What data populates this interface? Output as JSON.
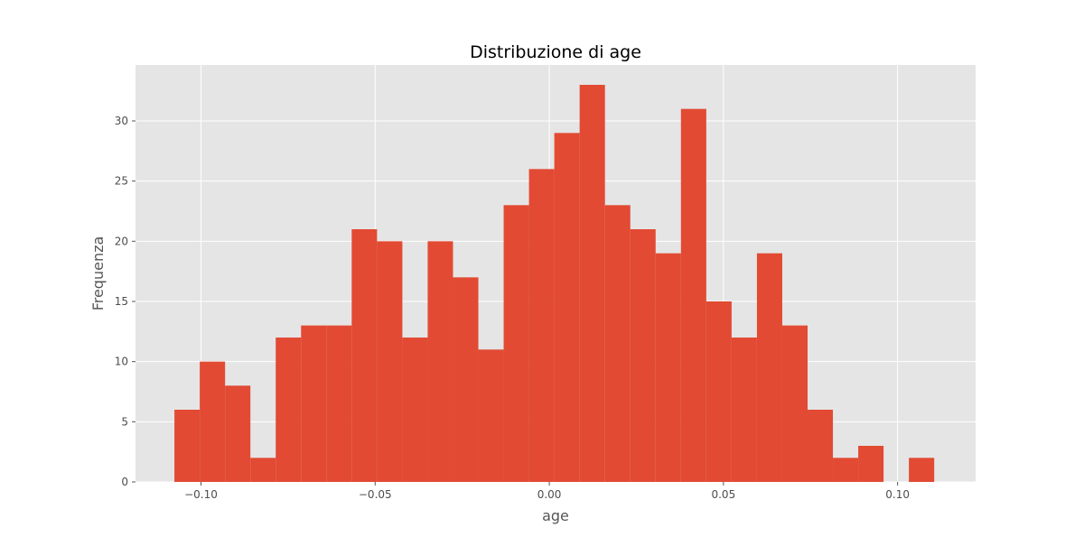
{
  "chart_data": {
    "type": "bar",
    "title": "Distribuzione di age",
    "xlabel": "age",
    "ylabel": "Frequenza",
    "xlim": [
      -0.1188,
      0.1224
    ],
    "ylim": [
      0,
      34.65
    ],
    "x_ticks": [
      -0.1,
      -0.05,
      0.0,
      0.05,
      0.1
    ],
    "x_tick_labels": [
      "−0.10",
      "−0.05",
      "0.00",
      "0.05",
      "0.10"
    ],
    "y_ticks": [
      0,
      5,
      10,
      15,
      20,
      25,
      30
    ],
    "y_tick_labels": [
      "0",
      "5",
      "10",
      "15",
      "20",
      "25",
      "30"
    ],
    "grid": true,
    "bar_color": "#E24A33",
    "background_color": "#E5E5E5",
    "grid_color": "#FFFFFF",
    "bin_edges": [
      -0.107627,
      -0.100356,
      -0.093084,
      -0.085813,
      -0.078541,
      -0.07127,
      -0.063998,
      -0.056727,
      -0.049455,
      -0.042184,
      -0.034912,
      -0.027641,
      -0.020369,
      -0.013098,
      -0.005826,
      0.001445,
      0.008716,
      0.015988,
      0.023259,
      0.030531,
      0.037802,
      0.045074,
      0.052345,
      0.059617,
      0.066888,
      0.07416,
      0.081431,
      0.088703,
      0.095974,
      0.103246,
      0.110517
    ],
    "values": [
      6,
      10,
      8,
      2,
      12,
      13,
      13,
      21,
      20,
      12,
      20,
      17,
      11,
      23,
      26,
      29,
      33,
      23,
      21,
      19,
      31,
      15,
      12,
      19,
      13,
      6,
      2,
      3,
      0,
      2
    ]
  }
}
